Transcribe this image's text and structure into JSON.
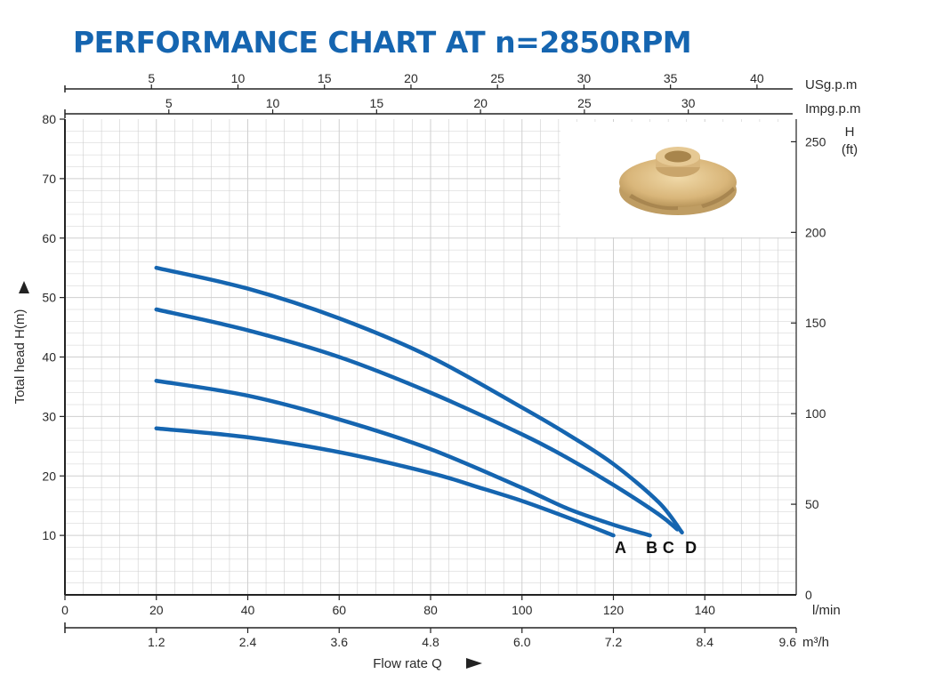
{
  "title": "PERFORMANCE CHART AT n=2850RPM",
  "chart_data": {
    "type": "line",
    "title": "PERFORMANCE CHART AT n=2850RPM",
    "xlabel": "Flow rate Q",
    "ylabel": "Total head H(m)",
    "x_unit": "l/min",
    "xlim": [
      0,
      160
    ],
    "ylim": [
      0,
      80
    ],
    "x_ticks": [
      0,
      20,
      40,
      60,
      80,
      100,
      120,
      140
    ],
    "y_ticks": [
      10,
      20,
      30,
      40,
      50,
      60,
      70,
      80
    ],
    "grid": true,
    "series": [
      {
        "name": "A",
        "x": [
          20,
          40,
          60,
          80,
          90,
          100,
          110,
          120
        ],
        "y": [
          28,
          26.5,
          24,
          20.5,
          18.2,
          15.8,
          13,
          10
        ]
      },
      {
        "name": "B",
        "x": [
          20,
          40,
          60,
          80,
          100,
          110,
          120,
          128
        ],
        "y": [
          36,
          33.5,
          29.5,
          24.5,
          18,
          14.5,
          11.8,
          10
        ]
      },
      {
        "name": "C",
        "x": [
          20,
          40,
          60,
          80,
          100,
          110,
          120,
          130,
          134
        ],
        "y": [
          48,
          44.5,
          40,
          34,
          27,
          23,
          18.5,
          13.5,
          11
        ]
      },
      {
        "name": "D",
        "x": [
          20,
          40,
          60,
          80,
          100,
          110,
          120,
          130,
          135
        ],
        "y": [
          55,
          51.5,
          46.5,
          40,
          31.5,
          27,
          22,
          15.5,
          10.5
        ]
      }
    ],
    "secondary_axes": {
      "usgpm": {
        "label": "USg.p.m",
        "ticks": [
          "5",
          "10",
          "15",
          "20",
          "25",
          "30",
          "35",
          "40"
        ]
      },
      "impgpm": {
        "label": "Impg.p.m",
        "ticks": [
          "5",
          "10",
          "15",
          "20",
          "25",
          "30"
        ]
      },
      "head_ft": {
        "label_line1": "H",
        "label_line2": "(ft)",
        "ticks": [
          "0",
          "50",
          "100",
          "150",
          "200",
          "250"
        ]
      },
      "m3h": {
        "unit": "m³/h",
        "ticks": [
          "1.2",
          "2.4",
          "3.6",
          "4.8",
          "6.0",
          "7.2",
          "8.4",
          "9.6"
        ]
      }
    },
    "colors": {
      "curve": "#1565b0",
      "grid": "#cfcfcf",
      "title": "#1565b0"
    }
  }
}
